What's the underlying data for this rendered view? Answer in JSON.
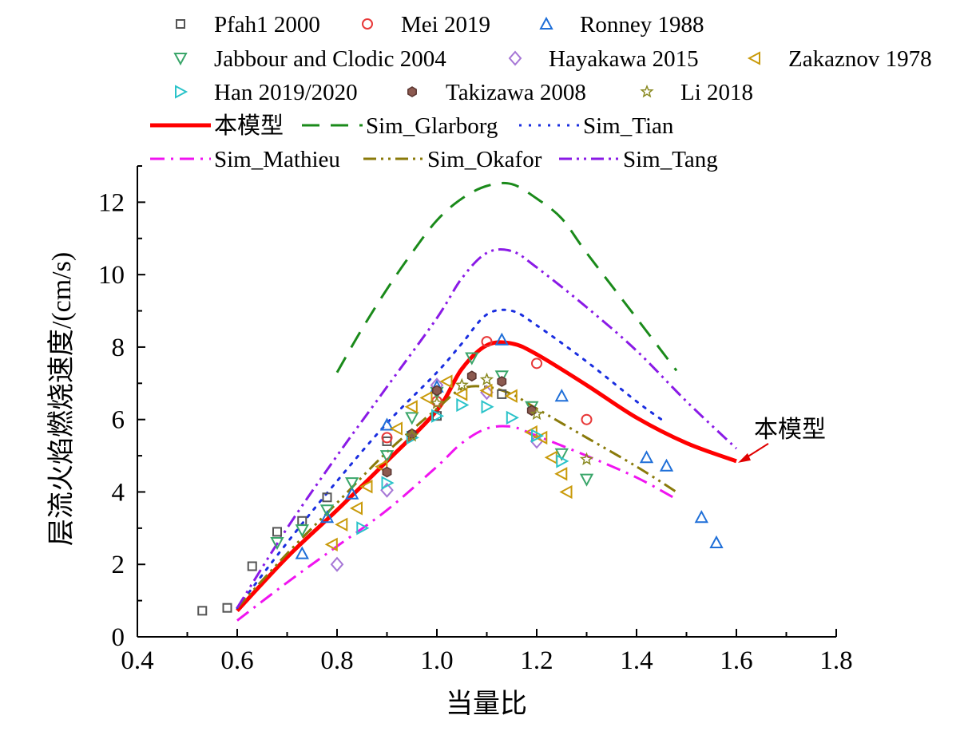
{
  "chart_data": {
    "type": "scatter",
    "xlabel": "当量比",
    "ylabel": "层流火焰燃烧速度/(cm/s)",
    "xlim": [
      0.4,
      1.8
    ],
    "ylim": [
      0,
      13
    ],
    "xticks": [
      "0.4",
      "0.6",
      "0.8",
      "1.0",
      "1.2",
      "1.4",
      "1.6",
      "1.8"
    ],
    "yticks": [
      "0",
      "2",
      "4",
      "6",
      "8",
      "10",
      "12"
    ],
    "grid": false,
    "legend_position": "top",
    "annotation": {
      "text": "本模型",
      "x": 1.6,
      "y": 4.85
    },
    "scatter_series": [
      {
        "name": "Pfah1 2000",
        "marker": "square",
        "color": "#555555",
        "points": [
          [
            0.53,
            0.72
          ],
          [
            0.58,
            0.8
          ],
          [
            0.63,
            1.95
          ],
          [
            0.68,
            2.9
          ],
          [
            0.73,
            3.2
          ],
          [
            0.78,
            3.85
          ],
          [
            0.9,
            5.4
          ],
          [
            1.0,
            6.1
          ],
          [
            1.13,
            6.7
          ]
        ]
      },
      {
        "name": "Mei 2019",
        "marker": "circle",
        "color": "#e83838",
        "points": [
          [
            0.9,
            5.5
          ],
          [
            1.0,
            6.5
          ],
          [
            1.1,
            8.15
          ],
          [
            1.2,
            7.55
          ],
          [
            1.3,
            6.0
          ]
        ]
      },
      {
        "name": "Ronney 1988",
        "marker": "triangle-up",
        "color": "#1f6fd8",
        "points": [
          [
            0.73,
            2.3
          ],
          [
            0.78,
            3.3
          ],
          [
            0.83,
            3.95
          ],
          [
            0.9,
            5.85
          ],
          [
            1.0,
            6.9
          ],
          [
            1.13,
            8.2
          ],
          [
            1.25,
            6.65
          ],
          [
            1.42,
            4.95
          ],
          [
            1.46,
            4.72
          ],
          [
            1.53,
            3.3
          ],
          [
            1.56,
            2.6
          ]
        ]
      },
      {
        "name": "Jabbour and Clodic 2004",
        "marker": "triangle-down",
        "color": "#3aa66a",
        "points": [
          [
            0.68,
            2.6
          ],
          [
            0.73,
            2.95
          ],
          [
            0.78,
            3.5
          ],
          [
            0.83,
            4.25
          ],
          [
            0.9,
            5.0
          ],
          [
            0.95,
            6.05
          ],
          [
            1.0,
            6.75
          ],
          [
            1.07,
            7.7
          ],
          [
            1.13,
            7.2
          ],
          [
            1.19,
            6.35
          ],
          [
            1.25,
            5.05
          ],
          [
            1.3,
            4.35
          ]
        ]
      },
      {
        "name": "Hayakawa 2015",
        "marker": "diamond",
        "color": "#a676d6",
        "points": [
          [
            0.8,
            2.0
          ],
          [
            0.9,
            4.05
          ],
          [
            1.0,
            6.95
          ],
          [
            1.1,
            6.75
          ],
          [
            1.2,
            5.4
          ]
        ]
      },
      {
        "name": "Zakaznov 1978",
        "marker": "triangle-left",
        "color": "#c99a0a",
        "points": [
          [
            0.79,
            2.55
          ],
          [
            0.81,
            3.1
          ],
          [
            0.84,
            3.55
          ],
          [
            0.86,
            4.15
          ],
          [
            0.89,
            4.7
          ],
          [
            0.92,
            5.75
          ],
          [
            0.95,
            6.35
          ],
          [
            0.98,
            6.6
          ],
          [
            1.02,
            7.05
          ],
          [
            1.05,
            6.7
          ],
          [
            1.1,
            6.8
          ],
          [
            1.15,
            6.65
          ],
          [
            1.19,
            5.65
          ],
          [
            1.21,
            5.5
          ],
          [
            1.23,
            4.95
          ],
          [
            1.25,
            4.5
          ],
          [
            1.26,
            4.0
          ]
        ]
      },
      {
        "name": "Han 2019/2020",
        "marker": "triangle-right",
        "color": "#2ac3c9",
        "points": [
          [
            0.85,
            3.0
          ],
          [
            0.9,
            4.25
          ],
          [
            0.95,
            5.5
          ],
          [
            1.0,
            6.1
          ],
          [
            1.05,
            6.4
          ],
          [
            1.1,
            6.35
          ],
          [
            1.15,
            6.05
          ],
          [
            1.2,
            5.55
          ],
          [
            1.25,
            4.85
          ]
        ]
      },
      {
        "name": "Takizawa 2008",
        "marker": "hexagon",
        "color": "#8c5a50",
        "points": [
          [
            0.9,
            4.55
          ],
          [
            0.95,
            5.6
          ],
          [
            1.0,
            6.8
          ],
          [
            1.07,
            7.2
          ],
          [
            1.13,
            7.05
          ],
          [
            1.19,
            6.25
          ]
        ]
      },
      {
        "name": "Li 2018",
        "marker": "star",
        "color": "#8a8a22",
        "points": [
          [
            0.95,
            5.55
          ],
          [
            1.0,
            6.45
          ],
          [
            1.05,
            6.95
          ],
          [
            1.1,
            7.1
          ],
          [
            1.2,
            6.15
          ],
          [
            1.3,
            4.9
          ]
        ]
      }
    ],
    "line_series": [
      {
        "name": "本模型",
        "color": "#ff0000",
        "dash": "solid",
        "x": [
          0.6,
          0.7,
          0.8,
          0.9,
          1.0,
          1.05,
          1.1,
          1.15,
          1.2,
          1.3,
          1.4,
          1.5,
          1.6
        ],
        "y": [
          0.72,
          2.2,
          3.5,
          4.85,
          6.25,
          7.4,
          8.05,
          8.1,
          7.8,
          6.95,
          6.05,
          5.35,
          4.85
        ]
      },
      {
        "name": "Sim_Glarborg",
        "color": "#1a8a1a",
        "dash": "long-dash",
        "x": [
          0.8,
          0.85,
          0.9,
          0.95,
          1.0,
          1.05,
          1.1,
          1.15,
          1.2,
          1.25,
          1.3,
          1.4,
          1.48
        ],
        "y": [
          7.3,
          8.5,
          9.6,
          10.6,
          11.5,
          12.1,
          12.45,
          12.5,
          12.1,
          11.55,
          10.6,
          8.8,
          7.35
        ]
      },
      {
        "name": "Sim_Tian",
        "color": "#1a2ee0",
        "dash": "dot",
        "x": [
          0.6,
          0.7,
          0.8,
          0.9,
          1.0,
          1.05,
          1.1,
          1.15,
          1.2,
          1.3,
          1.4,
          1.45
        ],
        "y": [
          0.8,
          2.6,
          4.3,
          5.9,
          7.3,
          8.1,
          8.9,
          9.0,
          8.6,
          7.6,
          6.5,
          6.0
        ]
      },
      {
        "name": "Sim_Mathieu",
        "color": "#f014f0",
        "dash": "dash-dot",
        "x": [
          0.6,
          0.7,
          0.8,
          0.9,
          1.0,
          1.05,
          1.1,
          1.15,
          1.2,
          1.3,
          1.4,
          1.48
        ],
        "y": [
          0.45,
          1.5,
          2.5,
          3.5,
          4.7,
          5.35,
          5.75,
          5.8,
          5.55,
          5.0,
          4.4,
          3.8
        ]
      },
      {
        "name": "Sim_Okafor",
        "color": "#8a7a0a",
        "dash": "dash-dot-dot",
        "x": [
          0.6,
          0.7,
          0.8,
          0.9,
          1.0,
          1.05,
          1.1,
          1.15,
          1.2,
          1.3,
          1.4,
          1.48
        ],
        "y": [
          0.8,
          2.3,
          3.7,
          5.1,
          6.3,
          6.85,
          6.9,
          6.7,
          6.3,
          5.5,
          4.7,
          4.0
        ]
      },
      {
        "name": "Sim_Tang",
        "color": "#8a1ae6",
        "dash": "dash-dot-dot",
        "x": [
          0.6,
          0.7,
          0.8,
          0.9,
          1.0,
          1.05,
          1.1,
          1.15,
          1.2,
          1.3,
          1.4,
          1.5,
          1.6
        ],
        "y": [
          0.8,
          3.0,
          5.0,
          6.9,
          8.8,
          9.9,
          10.6,
          10.65,
          10.2,
          9.1,
          7.9,
          6.5,
          5.2
        ]
      }
    ]
  }
}
